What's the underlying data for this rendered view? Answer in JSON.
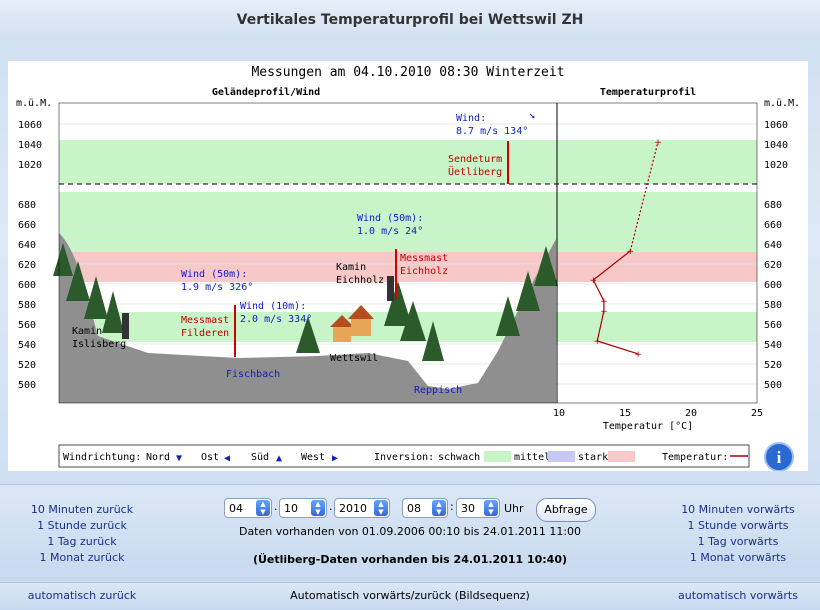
{
  "header": {
    "title": "Vertikales Temperaturprofil bei Wettswil ZH"
  },
  "chart_panel": {
    "measurement_title": "Messungen am 04.10.2010 08:30 Winterzeit",
    "left_title": "Geländeprofil/Wind",
    "right_title": "Temperaturprofil",
    "unit_left": "m.ü.M.",
    "unit_right": "m.ü.M.",
    "altitude_ticks": [
      "1060",
      "1040",
      "1020",
      "680",
      "660",
      "640",
      "620",
      "600",
      "580",
      "560",
      "540",
      "520",
      "500"
    ],
    "temp_ticks": [
      "10",
      "15",
      "20",
      "25"
    ],
    "temp_axis_label": "Temperatur [°C]",
    "labels": {
      "wind_top": "Wind:",
      "wind_top_values": "8.7 m/s    134°",
      "sendeturm": "Sendeturm",
      "uetliberg": "Üetliberg",
      "wind50_1": "Wind (50m):",
      "wind50_1_values": "1.0 m/s    24°",
      "kamin_eich_1": "Kamin",
      "kamin_eich_2": "Eichholz",
      "messmast_eich_1": "Messmast",
      "messmast_eich_2": "Eichholz",
      "wind50_2": "Wind (50m):",
      "wind50_2_values": "1.9 m/s    326°",
      "wind10": "Wind (10m):",
      "wind10_values": "2.0 m/s    334°",
      "messmast_fild_1": "Messmast",
      "messmast_fild_2": "Filderen",
      "kamin_isl_1": "Kamin",
      "kamin_isl_2": "Islisberg",
      "wettswil": "Wettswil",
      "fischbach": "Fischbach",
      "reppisch": "Reppisch"
    },
    "legend": {
      "wind": "Windrichtung:",
      "nord": "Nord",
      "ost": "Ost",
      "sud": "Süd",
      "west": "West",
      "inversion": "Inversion:",
      "schwach": "schwach",
      "mittel": "mittel",
      "stark": "stark",
      "temperatur": "Temperatur:"
    },
    "colors": {
      "schwach": "#c8f5c8",
      "mittel": "#c8c8f5",
      "stark": "#f7c8c8",
      "temp_line": "#b00000",
      "terrain": "#8f8f8f"
    }
  },
  "chart_data": {
    "type": "line",
    "title": "Temperaturprofil",
    "xlabel": "Temperatur [°C]",
    "ylabel": "m.ü.M.",
    "xlim": [
      10,
      25
    ],
    "series": [
      {
        "x": [
          16.0,
          12.9,
          13.4,
          13.4,
          12.6,
          15.4,
          17.5
        ],
        "y": [
          530,
          543,
          573,
          583,
          604,
          633,
          1042
        ]
      }
    ]
  },
  "controls": {
    "left_links": [
      "10 Minuten zurück",
      "1 Stunde zurück",
      "1 Tag zurück",
      "1 Monat zurück"
    ],
    "right_links": [
      "10 Minuten vorwärts",
      "1 Stunde vorwärts",
      "1 Tag vorwärts",
      "1 Monat vorwärts"
    ],
    "day": "04",
    "month": "10",
    "year": "2010",
    "hour": "08",
    "minute": "30",
    "uhr": "Uhr",
    "submit": "Abfrage",
    "availability": "Daten vorhanden von 01.09.2006 00:10 bis 24.01.2011 11:00",
    "uetliberg_availability": "(Üetliberg-Daten vorhanden bis 24.01.2011 10:40)"
  },
  "footer": {
    "auto_back": "automatisch zurück",
    "auto_sequence": "Automatisch vorwärts/zurück (Bildsequenz)",
    "auto_forward": "automatisch vorwärts"
  }
}
